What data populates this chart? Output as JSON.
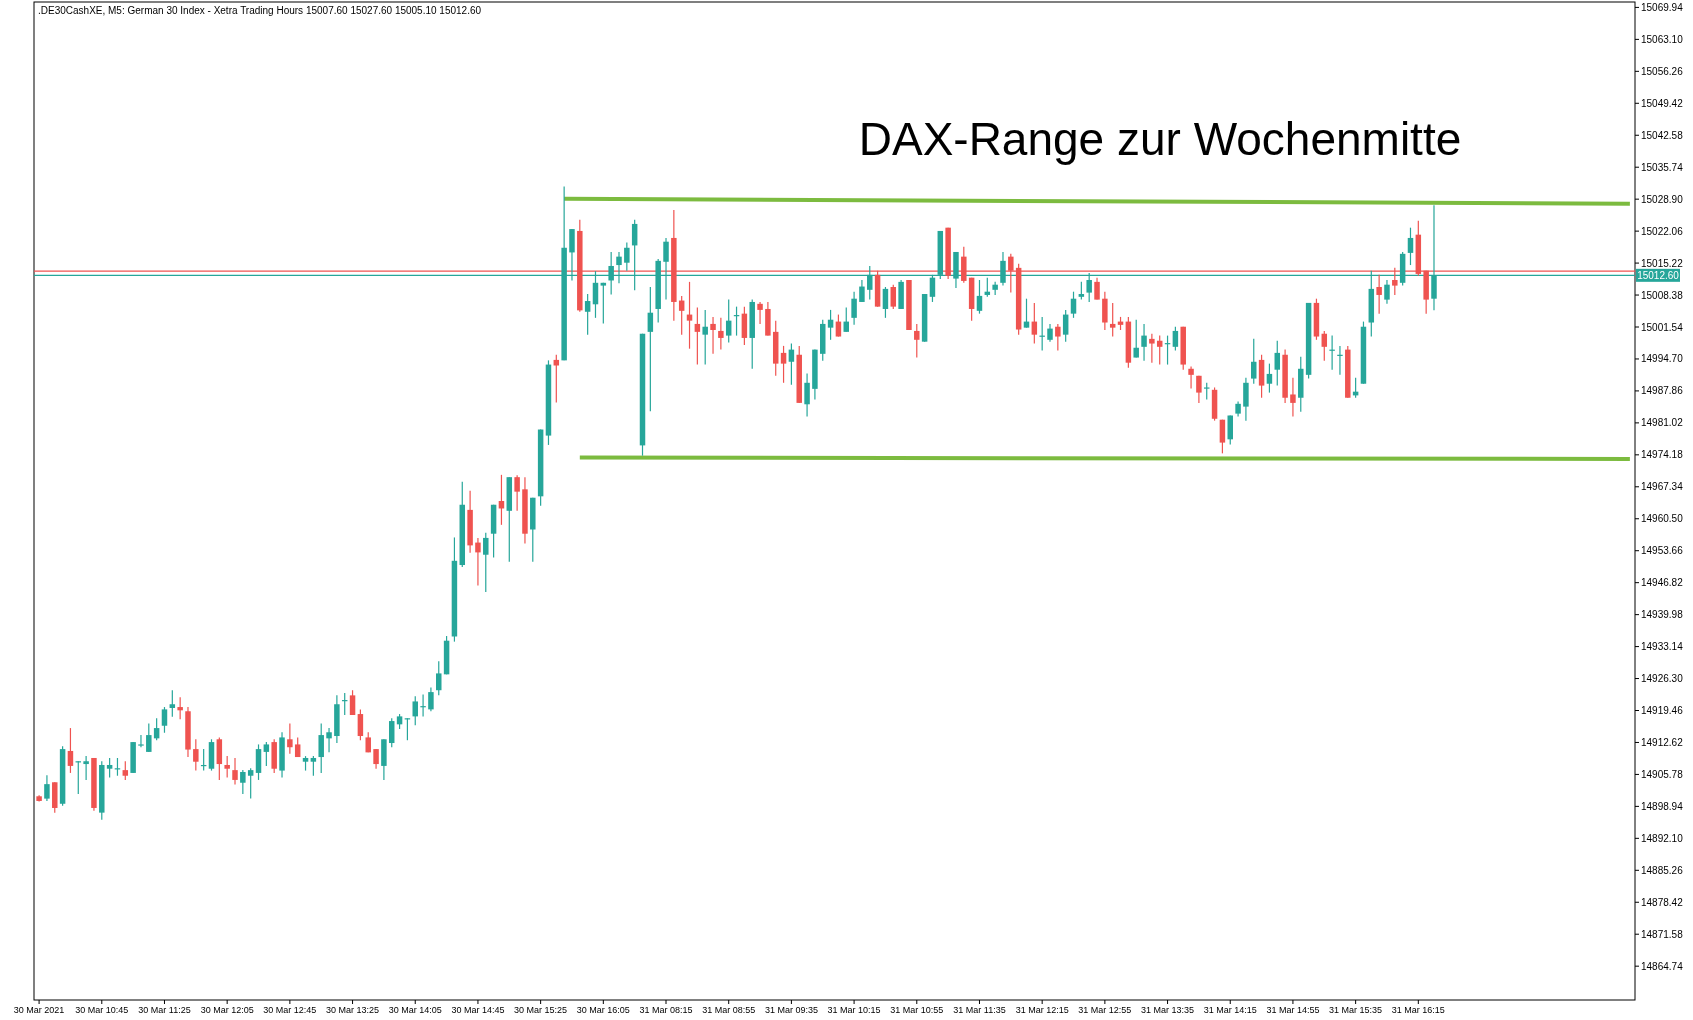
{
  "chart_data": {
    "type": "candlestick",
    "title": "DAX-Range zur Wochenmitte",
    "annotations": [
      ".DE30CashXE, M5:  German 30 Index  - Xetra Trading Hours  15007.60 15027.60 15005.10 15012.60"
    ],
    "categories": [
      "30 Mar 2021",
      null,
      null,
      null,
      null,
      null,
      null,
      null,
      "30 Mar 10:45",
      null,
      null,
      null,
      null,
      null,
      null,
      null,
      "30 Mar 11:25",
      null,
      null,
      null,
      null,
      null,
      null,
      null,
      "30 Mar 12:05",
      null,
      null,
      null,
      null,
      null,
      null,
      null,
      "30 Mar 12:45",
      null,
      null,
      null,
      null,
      null,
      null,
      null,
      "30 Mar 13:25",
      null,
      null,
      null,
      null,
      null,
      null,
      null,
      "30 Mar 14:05",
      null,
      null,
      null,
      null,
      null,
      null,
      null,
      "30 Mar 14:45",
      null,
      null,
      null,
      null,
      null,
      null,
      null,
      "30 Mar 15:25",
      null,
      null,
      null,
      null,
      null,
      null,
      null,
      "30 Mar 16:05",
      null,
      null,
      null,
      null,
      null,
      null,
      null,
      "31 Mar 08:15",
      null,
      null,
      null,
      null,
      null,
      null,
      null,
      "31 Mar 08:55",
      null,
      null,
      null,
      null,
      null,
      null,
      null,
      "31 Mar 09:35",
      null,
      null,
      null,
      null,
      null,
      null,
      null,
      "31 Mar 10:15",
      null,
      null,
      null,
      null,
      null,
      null,
      null,
      "31 Mar 10:55",
      null,
      null,
      null,
      null,
      null,
      null,
      null,
      "31 Mar 11:35",
      null,
      null,
      null,
      null,
      null,
      null,
      null,
      "31 Mar 12:15",
      null,
      null,
      null,
      null,
      null,
      null,
      null,
      "31 Mar 12:55",
      null,
      null,
      null,
      null,
      null,
      null,
      null,
      "31 Mar 13:35",
      null,
      null,
      null,
      null,
      null,
      null,
      null,
      "31 Mar 14:15",
      null,
      null,
      null,
      null,
      null,
      null,
      null,
      "31 Mar 14:55",
      null,
      null,
      null,
      null,
      null,
      null,
      null,
      "31 Mar 15:35",
      null,
      null,
      null,
      null,
      null,
      null,
      null,
      "31 Mar 16:15",
      null,
      null,
      null,
      null,
      null,
      null,
      null,
      null,
      null,
      null,
      null,
      null,
      null,
      null,
      null,
      null,
      null,
      null,
      null,
      null,
      null,
      null,
      null,
      null,
      null,
      null,
      null
    ],
    "ohlc": [
      [
        14901.1,
        14901.3,
        14900.0,
        14900.1
      ],
      [
        14900.6,
        14905.6,
        14900.1,
        14903.7
      ],
      [
        14904.1,
        14904.1,
        14897.6,
        14898.6
      ],
      [
        14899.5,
        14911.8,
        14899.1,
        14911.2
      ],
      [
        14910.8,
        14915.7,
        14906.1,
        14907.6
      ],
      [
        14908.5,
        14908.6,
        14901.6,
        14908.6
      ],
      [
        14908.0,
        14909.7,
        14904.6,
        14908.6
      ],
      [
        14909.3,
        14909.3,
        14898.0,
        14898.6
      ],
      [
        14897.6,
        14908.6,
        14896.1,
        14907.8
      ],
      [
        14907.0,
        14909.3,
        14905.1,
        14907.8
      ],
      [
        14907.0,
        14909.3,
        14905.5,
        14907.1
      ],
      [
        14906.7,
        14908.6,
        14904.6,
        14905.5
      ],
      [
        14906.1,
        14912.7,
        14906.1,
        14912.7
      ],
      [
        14912.0,
        14914.2,
        14911.6,
        14912.2
      ],
      [
        14910.6,
        14916.7,
        14910.6,
        14914.2
      ],
      [
        14913.5,
        14917.8,
        14913.1,
        14915.7
      ],
      [
        14916.2,
        14920.2,
        14914.7,
        14919.7
      ],
      [
        14920.0,
        14923.8,
        14918.1,
        14920.8
      ],
      [
        14920.2,
        14922.3,
        14917.6,
        14919.5
      ],
      [
        14919.3,
        14920.2,
        14909.5,
        14911.1
      ],
      [
        14911.2,
        14913.3,
        14906.6,
        14908.5
      ],
      [
        14907.6,
        14911.2,
        14906.6,
        14907.8
      ],
      [
        14907.0,
        14913.3,
        14906.6,
        14912.7
      ],
      [
        14913.3,
        14913.7,
        14904.6,
        14908.0
      ],
      [
        14907.8,
        14909.7,
        14905.1,
        14907.0
      ],
      [
        14906.7,
        14909.3,
        14903.6,
        14904.6
      ],
      [
        14904.0,
        14906.7,
        14901.6,
        14906.3
      ],
      [
        14905.5,
        14907.1,
        14900.6,
        14906.7
      ],
      [
        14906.1,
        14912.2,
        14904.6,
        14911.2
      ],
      [
        14910.6,
        14912.7,
        14907.6,
        14912.2
      ],
      [
        14912.7,
        14913.3,
        14906.1,
        14907.0
      ],
      [
        14906.6,
        14914.8,
        14905.1,
        14913.7
      ],
      [
        14913.3,
        14916.7,
        14910.2,
        14911.6
      ],
      [
        14912.2,
        14913.7,
        14909.5,
        14909.5
      ],
      [
        14908.5,
        14909.7,
        14906.6,
        14909.3
      ],
      [
        14908.5,
        14909.7,
        14905.5,
        14909.3
      ],
      [
        14909.5,
        14916.7,
        14906.1,
        14914.2
      ],
      [
        14913.5,
        14915.7,
        14910.5,
        14914.8
      ],
      [
        14914.0,
        14922.7,
        14912.5,
        14920.8
      ],
      [
        14921.5,
        14923.2,
        14918.5,
        14921.7
      ],
      [
        14922.7,
        14923.8,
        14918.5,
        14918.5
      ],
      [
        14918.7,
        14919.7,
        14913.1,
        14914.0
      ],
      [
        14913.7,
        14914.8,
        14910.5,
        14910.5
      ],
      [
        14911.2,
        14911.2,
        14907.0,
        14908.0
      ],
      [
        14907.6,
        14913.3,
        14904.6,
        14913.3
      ],
      [
        14912.5,
        14917.8,
        14911.6,
        14917.2
      ],
      [
        14916.5,
        14918.7,
        14915.5,
        14918.2
      ],
      [
        14917.7,
        14917.8,
        14913.1,
        14917.8
      ],
      [
        14918.2,
        14922.5,
        14916.3,
        14921.4
      ],
      [
        14920.2,
        14922.9,
        14918.2,
        14920.4
      ],
      [
        14919.7,
        14924.4,
        14919.3,
        14923.4
      ],
      [
        14923.8,
        14930.0,
        14922.7,
        14927.4
      ],
      [
        14927.2,
        14935.4,
        14927.2,
        14934.4
      ],
      [
        14935.3,
        14956.5,
        14934.2,
        14951.5
      ],
      [
        14950.6,
        14968.4,
        14950.2,
        14963.5
      ],
      [
        14962.4,
        14966.5,
        14953.2,
        14954.8
      ],
      [
        14955.4,
        14956.4,
        14946.2,
        14953.3
      ],
      [
        14952.8,
        14957.5,
        14944.8,
        14956.4
      ],
      [
        14957.3,
        14963.5,
        14952.2,
        14963.5
      ],
      [
        14964.3,
        14969.9,
        14959.2,
        14962.7
      ],
      [
        14962.2,
        14969.4,
        14951.3,
        14969.4
      ],
      [
        14969.4,
        14969.8,
        14962.2,
        14966.3
      ],
      [
        14966.8,
        14969.4,
        14955.2,
        14957.3
      ],
      [
        14958.2,
        14965.0,
        14951.3,
        14965.0
      ],
      [
        14965.3,
        14979.6,
        14963.3,
        14979.6
      ],
      [
        14978.3,
        14994.4,
        14976.3,
        14993.5
      ],
      [
        14994.5,
        14995.6,
        14985.4,
        14993.3
      ],
      [
        14994.4,
        15031.6,
        14994.4,
        15018.5
      ],
      [
        15017.5,
        15022.5,
        15011.5,
        15022.5
      ],
      [
        15022.1,
        15024.5,
        15004.8,
        15005.1
      ],
      [
        15004.8,
        15008.6,
        14999.9,
        15007.1
      ],
      [
        15006.4,
        15013.5,
        15003.5,
        15011.0
      ],
      [
        15010.4,
        15011.0,
        15002.3,
        15011.0
      ],
      [
        15011.5,
        15017.6,
        15008.5,
        15014.6
      ],
      [
        15014.8,
        15017.6,
        15010.9,
        15016.6
      ],
      [
        15015.3,
        15019.6,
        15013.6,
        15018.5
      ],
      [
        15019.0,
        15024.5,
        15009.4,
        15023.6
      ],
      [
        14976.2,
        15000.1,
        14974.0,
        15000.1
      ],
      [
        15000.5,
        15010.1,
        14983.5,
        15004.6
      ],
      [
        15005.4,
        15016.1,
        15002.5,
        15015.7
      ],
      [
        15015.5,
        15020.6,
        15007.4,
        15019.8
      ],
      [
        15020.6,
        15026.6,
        15002.9,
        15006.9
      ],
      [
        15007.2,
        15008.2,
        14999.9,
        15005.0
      ],
      [
        15004.2,
        15011.2,
        14996.9,
        15002.9
      ],
      [
        15002.2,
        15005.7,
        14993.5,
        15000.5
      ],
      [
        14999.9,
        15005.2,
        14993.5,
        15001.6
      ],
      [
        15002.2,
        15003.7,
        14995.8,
        15000.9
      ],
      [
        15000.7,
        15003.5,
        14996.7,
        14999.2
      ],
      [
        14999.7,
        15007.4,
        14998.2,
        15002.9
      ],
      [
        15003.9,
        15005.9,
        14999.7,
        15004.1
      ],
      [
        15004.4,
        15005.9,
        14997.7,
        14999.2
      ],
      [
        14999.2,
        15007.4,
        14992.6,
        15006.9
      ],
      [
        15006.5,
        15006.9,
        15002.2,
        15005.2
      ],
      [
        15005.4,
        15006.9,
        14999.7,
        14999.7
      ],
      [
        15000.5,
        15002.9,
        14991.1,
        14993.7
      ],
      [
        14996.0,
        14997.5,
        14989.6,
        14993.7
      ],
      [
        14994.1,
        14998.0,
        14989.2,
        14996.7
      ],
      [
        14995.6,
        14997.5,
        14985.3,
        14985.3
      ],
      [
        14985.0,
        14991.6,
        14982.4,
        14989.6
      ],
      [
        14988.3,
        14996.7,
        14986.0,
        14996.7
      ],
      [
        14995.8,
        15003.1,
        14994.3,
        15002.2
      ],
      [
        15001.4,
        15005.2,
        14998.8,
        15003.1
      ],
      [
        15002.7,
        15004.2,
        14999.5,
        14999.5
      ],
      [
        15000.5,
        15005.7,
        15000.5,
        15002.7
      ],
      [
        15003.5,
        15009.1,
        15002.0,
        15007.6
      ],
      [
        15006.9,
        15011.6,
        15006.9,
        15010.2
      ],
      [
        15009.5,
        15014.6,
        15007.4,
        15012.7
      ],
      [
        15012.7,
        15013.6,
        15005.9,
        15005.9
      ],
      [
        15005.4,
        15010.1,
        15003.5,
        15009.7
      ],
      [
        15010.1,
        15010.6,
        15005.4,
        15005.9
      ],
      [
        15005.4,
        15011.6,
        15005.4,
        15011.2
      ],
      [
        15011.6,
        15011.6,
        15000.9,
        15000.9
      ],
      [
        15000.7,
        15002.2,
        14995.0,
        14998.8
      ],
      [
        14998.4,
        15008.6,
        14998.4,
        15008.6
      ],
      [
        15008.0,
        15012.7,
        15006.9,
        15012.1
      ],
      [
        15012.7,
        15022.1,
        15011.8,
        15022.1
      ],
      [
        15022.8,
        15022.8,
        15011.8,
        15012.5
      ],
      [
        15011.9,
        15017.6,
        15009.9,
        15017.6
      ],
      [
        15016.6,
        15018.7,
        15011.0,
        15011.4
      ],
      [
        15012.1,
        15012.1,
        15002.9,
        15005.4
      ],
      [
        15005.0,
        15011.6,
        15004.4,
        15008.2
      ],
      [
        15008.4,
        15012.1,
        15008.0,
        15009.1
      ],
      [
        15009.5,
        15011.2,
        15008.4,
        15010.6
      ],
      [
        15011.0,
        15017.6,
        15010.4,
        15015.7
      ],
      [
        15016.6,
        15017.2,
        15008.9,
        15013.6
      ],
      [
        15014.2,
        15015.1,
        14999.9,
        15001.0
      ],
      [
        15001.4,
        15007.6,
        15001.4,
        15002.7
      ],
      [
        15002.7,
        15006.7,
        14998.0,
        14999.9
      ],
      [
        14999.6,
        15003.7,
        14996.5,
        14999.7
      ],
      [
        14998.8,
        15002.2,
        14998.4,
        15001.2
      ],
      [
        15001.6,
        15002.2,
        14996.5,
        14999.5
      ],
      [
        14999.9,
        15005.2,
        14998.4,
        15004.2
      ],
      [
        15004.4,
        15009.1,
        15003.5,
        15007.6
      ],
      [
        15008.0,
        15011.2,
        15007.4,
        15008.6
      ],
      [
        15008.9,
        15013.1,
        15006.9,
        15011.6
      ],
      [
        15011.2,
        15012.1,
        15007.4,
        15007.4
      ],
      [
        15007.6,
        15009.1,
        15000.9,
        15002.5
      ],
      [
        15002.2,
        15006.7,
        14999.5,
        15001.4
      ],
      [
        15002.7,
        15003.7,
        15000.9,
        15002.0
      ],
      [
        15002.7,
        15003.7,
        14992.8,
        14993.9
      ],
      [
        14995.0,
        15003.1,
        14995.0,
        14997.1
      ],
      [
        14997.3,
        15002.2,
        14994.3,
        14999.7
      ],
      [
        14999.0,
        15000.1,
        14993.9,
        14998.0
      ],
      [
        14998.6,
        14999.7,
        14993.5,
        14997.3
      ],
      [
        14998.0,
        14999.7,
        14993.5,
        14998.1
      ],
      [
        14997.3,
        15001.6,
        14996.5,
        15000.7
      ],
      [
        15001.6,
        15001.6,
        14992.4,
        14993.5
      ],
      [
        14992.6,
        14993.1,
        14988.4,
        14991.3
      ],
      [
        14991.1,
        14991.1,
        14985.3,
        14987.5
      ],
      [
        14988.5,
        14989.6,
        14986.0,
        14988.6
      ],
      [
        14988.1,
        14988.6,
        14981.5,
        14981.9
      ],
      [
        14981.7,
        14981.7,
        14974.5,
        14976.8
      ],
      [
        14977.5,
        14982.6,
        14976.4,
        14982.6
      ],
      [
        14983.0,
        14985.6,
        14982.4,
        14985.1
      ],
      [
        14984.5,
        14990.7,
        14981.5,
        14989.6
      ],
      [
        14990.5,
        14999.0,
        14989.4,
        14994.1
      ],
      [
        14994.5,
        14995.6,
        14986.4,
        14989.0
      ],
      [
        14989.4,
        14993.7,
        14987.5,
        14991.5
      ],
      [
        14992.4,
        14998.6,
        14989.0,
        14996.0
      ],
      [
        14995.6,
        14996.7,
        14985.3,
        14986.4
      ],
      [
        14987.1,
        14990.7,
        14982.4,
        14985.3
      ],
      [
        14986.4,
        14995.2,
        14983.4,
        14992.6
      ],
      [
        14991.3,
        15006.7,
        14990.5,
        15006.7
      ],
      [
        15006.7,
        15007.6,
        14998.8,
        14999.5
      ],
      [
        15000.1,
        15000.7,
        14994.3,
        14997.3
      ],
      [
        14996.6,
        14999.7,
        14992.4,
        14996.7
      ],
      [
        14995.5,
        14997.5,
        14991.3,
        14995.6
      ],
      [
        14996.7,
        14997.5,
        14986.4,
        14986.4
      ],
      [
        14986.9,
        14990.7,
        14986.4,
        14987.7
      ],
      [
        14989.4,
        15002.7,
        14989.4,
        15001.6
      ],
      [
        15002.5,
        15013.6,
        14999.5,
        15009.7
      ],
      [
        15010.1,
        15012.7,
        15004.4,
        15008.4
      ],
      [
        15007.4,
        15011.6,
        15006.5,
        15010.6
      ],
      [
        15011.6,
        15014.2,
        15008.4,
        15010.4
      ],
      [
        15011.0,
        15017.6,
        15010.4,
        15017.2
      ],
      [
        15017.4,
        15022.8,
        15014.8,
        15020.6
      ],
      [
        15021.3,
        15024.3,
        15012.5,
        15012.9
      ],
      [
        15013.6,
        15013.6,
        15004.4,
        15007.4
      ],
      [
        15007.6,
        15027.6,
        15005.1,
        15012.6
      ],
      null,
      null,
      null,
      null,
      null,
      null,
      null,
      null,
      null,
      null,
      null,
      null,
      null,
      null,
      null,
      null,
      null,
      null,
      null,
      null,
      null,
      null,
      null,
      null,
      null
    ],
    "series": [
      {
        "type": "line",
        "color": "#7cbb3f",
        "values": [
          null,
          null,
          null,
          null,
          null,
          null,
          null,
          null,
          null,
          null,
          null,
          null,
          null,
          null,
          null,
          null,
          null,
          null,
          null,
          null,
          null,
          null,
          null,
          null,
          null,
          null,
          null,
          null,
          null,
          null,
          null,
          null,
          null,
          null,
          null,
          null,
          null,
          null,
          null,
          null,
          null,
          null,
          null,
          null,
          null,
          null,
          null,
          null,
          null,
          null,
          null,
          null,
          null,
          null,
          null,
          null,
          null,
          null,
          null,
          null,
          null,
          null,
          null,
          null,
          null,
          null,
          null,
          15029.0,
          null,
          null,
          null,
          null,
          null,
          null,
          null,
          null,
          null,
          null,
          null,
          null,
          null,
          null,
          null,
          null,
          null,
          null,
          null,
          null,
          null,
          null,
          null,
          null,
          null,
          null,
          null,
          null,
          null,
          null,
          null,
          null,
          null,
          null,
          null,
          null,
          null,
          null,
          null,
          null,
          null,
          null,
          null,
          null,
          null,
          null,
          null,
          null,
          null,
          null,
          null,
          null,
          null,
          null,
          null,
          null,
          null,
          null,
          null,
          null,
          null,
          null,
          null,
          null,
          null,
          null,
          null,
          null,
          null,
          null,
          null,
          null,
          null,
          null,
          null,
          null,
          null,
          null,
          null,
          null,
          null,
          null,
          null,
          null,
          null,
          null,
          null,
          null,
          null,
          null,
          null,
          null,
          null,
          null,
          null,
          null,
          null,
          null,
          null,
          null,
          null,
          null,
          null,
          null,
          null,
          null,
          null,
          null,
          null,
          null,
          null,
          null,
          null,
          null,
          null,
          null,
          null,
          null,
          null,
          null,
          null,
          null,
          null,
          null,
          null,
          null,
          null,
          null,
          null,
          null,
          null,
          null,
          null,
          null,
          null,
          15027.9
        ]
      },
      {
        "type": "line",
        "color": "#7cbb3f",
        "values": [
          null,
          null,
          null,
          null,
          null,
          null,
          null,
          null,
          null,
          null,
          null,
          null,
          null,
          null,
          null,
          null,
          null,
          null,
          null,
          null,
          null,
          null,
          null,
          null,
          null,
          null,
          null,
          null,
          null,
          null,
          null,
          null,
          null,
          null,
          null,
          null,
          null,
          null,
          null,
          null,
          null,
          null,
          null,
          null,
          null,
          null,
          null,
          null,
          null,
          null,
          null,
          null,
          null,
          null,
          null,
          null,
          null,
          null,
          null,
          null,
          null,
          null,
          null,
          null,
          null,
          null,
          null,
          null,
          null,
          14973.6,
          null,
          null,
          null,
          null,
          null,
          null,
          null,
          null,
          null,
          null,
          null,
          null,
          null,
          null,
          null,
          null,
          null,
          null,
          null,
          null,
          null,
          null,
          null,
          null,
          null,
          null,
          null,
          null,
          null,
          null,
          null,
          null,
          null,
          null,
          null,
          null,
          null,
          null,
          null,
          null,
          null,
          null,
          null,
          null,
          null,
          null,
          null,
          null,
          null,
          null,
          null,
          null,
          null,
          null,
          null,
          null,
          null,
          null,
          null,
          null,
          null,
          null,
          null,
          null,
          null,
          null,
          null,
          null,
          null,
          null,
          null,
          null,
          null,
          null,
          null,
          null,
          null,
          null,
          null,
          null,
          null,
          null,
          null,
          null,
          null,
          null,
          null,
          null,
          null,
          null,
          null,
          null,
          null,
          null,
          null,
          null,
          null,
          null,
          null,
          null,
          null,
          null,
          null,
          null,
          null,
          null,
          null,
          null,
          null,
          null,
          null,
          null,
          null,
          null,
          null,
          null,
          null,
          null,
          null,
          null,
          null,
          null,
          null,
          null,
          null,
          null,
          null,
          null,
          null,
          null,
          null,
          null,
          null,
          14973.3
        ]
      }
    ],
    "ref_lines": [
      {
        "axis": "y",
        "value": 15013.5,
        "label": null,
        "color": "#ef5350"
      },
      {
        "axis": "y",
        "value": 15012.6,
        "label": "15012.60",
        "color": "#26a69a"
      }
    ],
    "ylim": [
      14857.5,
      15071.1
    ],
    "yticks": [
      {
        "value": 14864.74,
        "label": "14864.74"
      },
      {
        "value": 14871.58,
        "label": "14871.58"
      },
      {
        "value": 14878.42,
        "label": "14878.42"
      },
      {
        "value": 14885.26,
        "label": "14885.26"
      },
      {
        "value": 14892.1,
        "label": "14892.10"
      },
      {
        "value": 14898.94,
        "label": "14898.94"
      },
      {
        "value": 14905.78,
        "label": "14905.78"
      },
      {
        "value": 14912.62,
        "label": "14912.62"
      },
      {
        "value": 14919.46,
        "label": "14919.46"
      },
      {
        "value": 14926.3,
        "label": "14926.30"
      },
      {
        "value": 14933.14,
        "label": "14933.14"
      },
      {
        "value": 14939.98,
        "label": "14939.98"
      },
      {
        "value": 14946.82,
        "label": "14946.82"
      },
      {
        "value": 14953.66,
        "label": "14953.66"
      },
      {
        "value": 14960.5,
        "label": "14960.50"
      },
      {
        "value": 14967.34,
        "label": "14967.34"
      },
      {
        "value": 14974.18,
        "label": "14974.18"
      },
      {
        "value": 14981.02,
        "label": "14981.02"
      },
      {
        "value": 14987.86,
        "label": "14987.86"
      },
      {
        "value": 14994.7,
        "label": "14994.70"
      },
      {
        "value": 15001.54,
        "label": "15001.54"
      },
      {
        "value": 15008.38,
        "label": "15008.38"
      },
      {
        "value": 15015.22,
        "label": "15015.22"
      },
      {
        "value": 15022.06,
        "label": "15022.06"
      },
      {
        "value": 15028.9,
        "label": "15028.90"
      },
      {
        "value": 15035.74,
        "label": "15035.74"
      },
      {
        "value": 15042.58,
        "label": "15042.58"
      },
      {
        "value": 15049.42,
        "label": "15049.42"
      },
      {
        "value": 15056.26,
        "label": "15056.26"
      },
      {
        "value": 15063.1,
        "label": "15063.10"
      },
      {
        "value": 15069.94,
        "label": "15069.94"
      }
    ]
  }
}
